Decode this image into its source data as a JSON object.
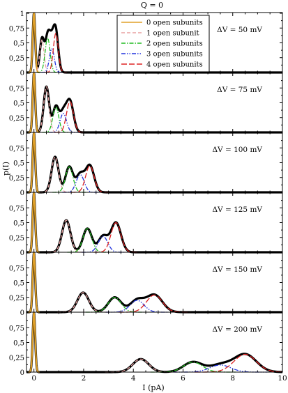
{
  "chart_data": {
    "type": "line",
    "title": "Q = 0",
    "xlabel": "I (pA)",
    "ylabel": "p(I)",
    "xlim": [
      -0.3,
      10
    ],
    "x_ticks": [
      0,
      2,
      4,
      6,
      8,
      10
    ],
    "x_tick_labels": [
      "0",
      "2",
      "4",
      "6",
      "8",
      "10"
    ],
    "y_ticks": [
      0,
      0.25,
      0.5,
      0.75,
      1
    ],
    "y_tick_labels": [
      "0",
      "0,25",
      "0,5",
      "0,75",
      "1"
    ],
    "legend": {
      "placement": "top-center of first panel",
      "entries": [
        {
          "label": "0 open subunits",
          "color": "#e0a028",
          "dash": "solid"
        },
        {
          "label": "1 open subunit",
          "color": "#e8a0a0",
          "dash": "dashed"
        },
        {
          "label": "2 open subunits",
          "color": "#22bb22",
          "dash": "dashdot"
        },
        {
          "label": "3 open subunits",
          "color": "#2233dd",
          "dash": "dashdotdot"
        },
        {
          "label": "4 open subunits",
          "color": "#dd2222",
          "dash": "longdash"
        }
      ]
    },
    "total_color": "#000000",
    "panels": [
      {
        "label": "ΔV = 50 mV",
        "ylim": [
          0,
          1
        ],
        "y_ticks_shown": [
          0,
          0.25,
          0.5,
          0.75,
          1
        ],
        "peaks": [
          {
            "mu": 0.0,
            "a": 1.0,
            "s": 0.05
          },
          {
            "mu": 0.32,
            "a": 0.55,
            "s": 0.085
          },
          {
            "mu": 0.55,
            "a": 0.58,
            "s": 0.1
          },
          {
            "mu": 0.72,
            "a": 0.4,
            "s": 0.1
          },
          {
            "mu": 0.88,
            "a": 0.66,
            "s": 0.1
          }
        ]
      },
      {
        "label": "ΔV = 75 mV",
        "ylim": [
          0,
          1
        ],
        "y_ticks_shown": [
          0,
          0.25,
          0.5,
          0.75
        ],
        "peaks": [
          {
            "mu": 0.0,
            "a": 1.0,
            "s": 0.05
          },
          {
            "mu": 0.5,
            "a": 0.77,
            "s": 0.11
          },
          {
            "mu": 0.88,
            "a": 0.43,
            "s": 0.12
          },
          {
            "mu": 1.18,
            "a": 0.32,
            "s": 0.13
          },
          {
            "mu": 1.45,
            "a": 0.52,
            "s": 0.14
          }
        ]
      },
      {
        "label": "ΔV = 100 mV",
        "ylim": [
          0,
          1
        ],
        "y_ticks_shown": [
          0,
          0.25,
          0.5,
          0.75
        ],
        "peaks": [
          {
            "mu": 0.0,
            "a": 1.0,
            "s": 0.05
          },
          {
            "mu": 0.85,
            "a": 0.6,
            "s": 0.14
          },
          {
            "mu": 1.42,
            "a": 0.43,
            "s": 0.15
          },
          {
            "mu": 1.86,
            "a": 0.3,
            "s": 0.16
          },
          {
            "mu": 2.25,
            "a": 0.45,
            "s": 0.17
          }
        ]
      },
      {
        "label": "ΔV = 125 mV",
        "ylim": [
          0,
          1
        ],
        "y_ticks_shown": [
          0,
          0.25,
          0.5,
          0.75
        ],
        "peaks": [
          {
            "mu": 0.0,
            "a": 1.0,
            "s": 0.05
          },
          {
            "mu": 1.3,
            "a": 0.54,
            "s": 0.17
          },
          {
            "mu": 2.15,
            "a": 0.4,
            "s": 0.18
          },
          {
            "mu": 2.78,
            "a": 0.27,
            "s": 0.19
          },
          {
            "mu": 3.3,
            "a": 0.5,
            "s": 0.2
          }
        ]
      },
      {
        "label": "ΔV = 150 mV",
        "ylim": [
          0,
          1
        ],
        "y_ticks_shown": [
          0,
          0.25,
          0.5,
          0.75
        ],
        "peaks": [
          {
            "mu": 0.0,
            "a": 1.0,
            "s": 0.05
          },
          {
            "mu": 1.98,
            "a": 0.33,
            "s": 0.23
          },
          {
            "mu": 3.25,
            "a": 0.25,
            "s": 0.26
          },
          {
            "mu": 4.15,
            "a": 0.2,
            "s": 0.28
          },
          {
            "mu": 4.85,
            "a": 0.29,
            "s": 0.32
          }
        ]
      },
      {
        "label": "ΔV = 200 mV",
        "ylim": [
          0,
          1
        ],
        "y_ticks_shown": [
          0,
          0.25,
          0.5,
          0.75
        ],
        "peaks": [
          {
            "mu": 0.0,
            "a": 1.0,
            "s": 0.05
          },
          {
            "mu": 4.3,
            "a": 0.22,
            "s": 0.32
          },
          {
            "mu": 6.4,
            "a": 0.17,
            "s": 0.38
          },
          {
            "mu": 7.5,
            "a": 0.12,
            "s": 0.42
          },
          {
            "mu": 8.5,
            "a": 0.3,
            "s": 0.45
          }
        ]
      }
    ]
  }
}
